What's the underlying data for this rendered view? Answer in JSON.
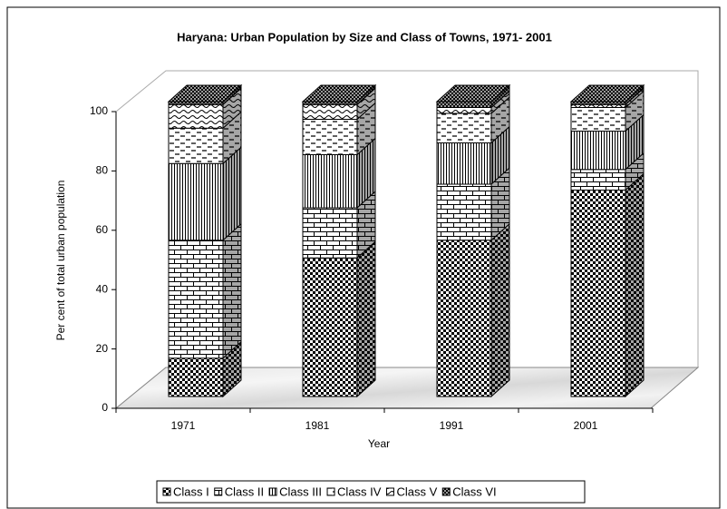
{
  "chart_data": {
    "type": "bar",
    "stacked": true,
    "title": "Haryana: Urban Population by Size and Class of Towns, 1971- 2001",
    "xlabel": "Year",
    "ylabel": "Per cent of total urban population",
    "categories": [
      "1971",
      "1981",
      "1991",
      "2001"
    ],
    "series": [
      {
        "name": "Class I",
        "color": "#000000",
        "values": [
          13,
          47,
          53,
          70
        ]
      },
      {
        "name": "Class II",
        "color": "#000000",
        "values": [
          40,
          17,
          19,
          7
        ]
      },
      {
        "name": "Class III",
        "color": "#000000",
        "values": [
          26,
          18,
          14,
          13
        ]
      },
      {
        "name": "Class IV",
        "color": "#000000",
        "values": [
          12,
          12,
          10,
          8
        ]
      },
      {
        "name": "Class V",
        "color": "#000000",
        "values": [
          8,
          5,
          2,
          1
        ]
      },
      {
        "name": "Class VI",
        "color": "#000000",
        "values": [
          1,
          1,
          2,
          1
        ]
      }
    ],
    "ylim": [
      0,
      100
    ],
    "yticks": [
      0,
      20,
      40,
      60,
      80,
      100
    ],
    "legend": "bottom"
  }
}
